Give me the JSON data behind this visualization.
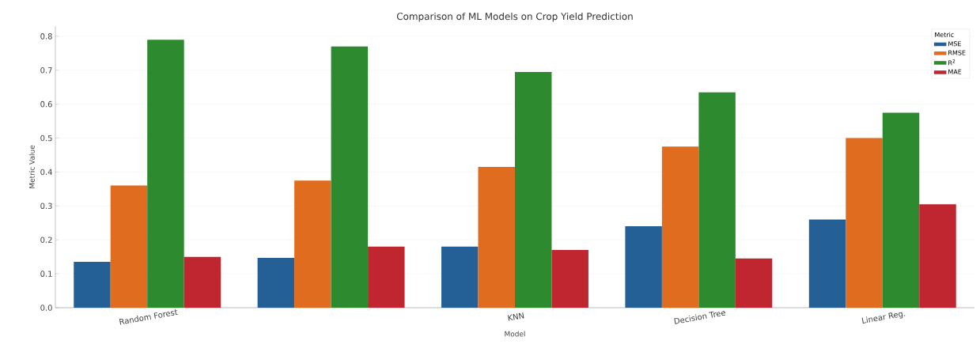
{
  "chart_data": {
    "type": "bar",
    "title": "Comparison of ML Models on Crop Yield Prediction",
    "xlabel": "Model",
    "ylabel": "Metric Value",
    "legend_title": "Metric",
    "categories": [
      "Random Forest",
      null,
      "KNN",
      "Decision Tree",
      "Linear Reg."
    ],
    "series": [
      {
        "name": "MSE",
        "color": "#245f96",
        "values": [
          0.135,
          0.147,
          0.18,
          0.24,
          0.26
        ]
      },
      {
        "name": "RMSE",
        "color": "#e06c1f",
        "values": [
          0.36,
          0.375,
          0.415,
          0.475,
          0.5
        ]
      },
      {
        "name": "R$^{2}$",
        "color": "#2e8a2e",
        "values": [
          0.79,
          0.77,
          0.695,
          0.635,
          0.575
        ]
      },
      {
        "name": "MAE",
        "color": "#c0262f",
        "values": [
          0.15,
          0.18,
          0.17,
          0.145,
          0.305
        ]
      }
    ],
    "ylim": [
      0,
      0.83
    ],
    "yticks": [
      {
        "value": 0,
        "label": "0.0"
      },
      0.1,
      0.2,
      0.3,
      0.4,
      0.5,
      0.6,
      0.7,
      0.8
    ],
    "grid": "y",
    "legend": "top right"
  }
}
